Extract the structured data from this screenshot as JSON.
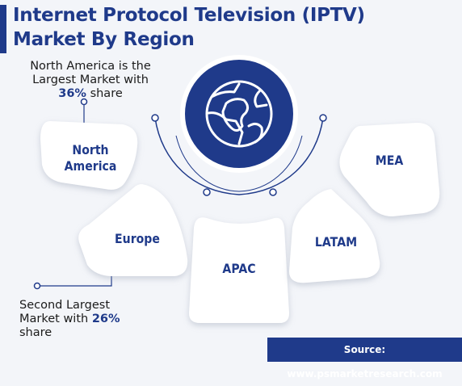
{
  "title": "Internet Protocol Television (IPTV) Market By Region",
  "regions": {
    "north_america": "North America",
    "north_line1": "North",
    "north_line2": "America",
    "europe": "Europe",
    "apac": "APAC",
    "latam": "LATAM",
    "mea": "MEA"
  },
  "notes": {
    "north_america_pre": "North America is the Largest Market with",
    "north_america_pct": "36%",
    "north_america_post": "share",
    "europe_pre": "Second Largest Market with",
    "europe_pct": "26%",
    "europe_post": "share"
  },
  "footer": {
    "label": "Source:",
    "url": "www.psmarketresearch.com"
  },
  "icon": "globe-icon",
  "colors": {
    "accent": "#1f3a8a",
    "background": "#f3f5f9",
    "card": "#ffffff"
  }
}
